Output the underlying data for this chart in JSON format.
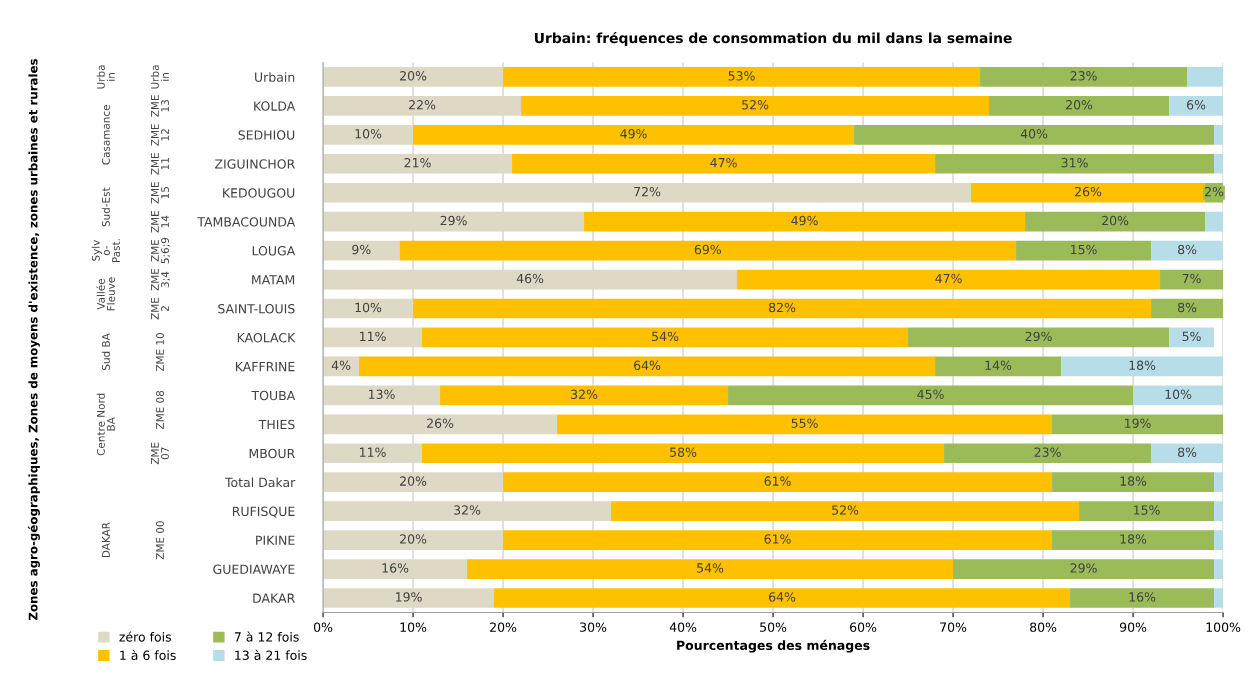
{
  "chart_data": {
    "type": "bar",
    "orientation": "horizontal",
    "stacked": true,
    "title": "Urbain: fréquences de consommation du mil dans la semaine",
    "xlabel": "Pourcentages des ménages",
    "categories": [
      "Urbain",
      "KOLDA",
      "SEDHIOU",
      "ZIGUINCHOR",
      "KEDOUGOU",
      "TAMBACOUNDA",
      "LOUGA",
      "MATAM",
      "SAINT-LOUIS",
      "KAOLACK",
      "KAFFRINE",
      "TOUBA",
      "THIES",
      "MBOUR",
      "Total Dakar",
      "RUFISQUE",
      "PIKINE",
      "GUEDIAWAYE",
      "DAKAR"
    ],
    "series": [
      {
        "name": "zéro fois",
        "color": "#ddd9c4",
        "values": [
          20,
          22,
          10,
          21,
          72,
          29,
          8.5,
          46,
          10,
          11,
          4,
          13,
          26,
          11,
          20,
          32,
          20,
          16,
          19
        ],
        "value_labels": [
          "20%",
          "22%",
          "10%",
          "21%",
          "72%",
          "29%",
          "9%",
          "46%",
          "10%",
          "11%",
          "4%",
          "13%",
          "26%",
          "11%",
          "20%",
          "32%",
          "20%",
          "16%",
          "19%"
        ]
      },
      {
        "name": "1 à 6 fois",
        "color": "#ffc000",
        "values": [
          53,
          52,
          49,
          47,
          26,
          49,
          68.5,
          47,
          82,
          54,
          64,
          32,
          55,
          58,
          61,
          52,
          61,
          54,
          64
        ],
        "value_labels": [
          "53%",
          "52%",
          "49%",
          "47%",
          "26%",
          "49%",
          "69%",
          "47%",
          "82%",
          "54%",
          "64%",
          "32%",
          "55%",
          "58%",
          "61%",
          "52%",
          "61%",
          "54%",
          "64%"
        ]
      },
      {
        "name": "7 à 12 fois",
        "color": "#9bbb59",
        "values": [
          23,
          20,
          40,
          31,
          2,
          20,
          15,
          7,
          8,
          29,
          14,
          45,
          19,
          23,
          18,
          15,
          18,
          29,
          16
        ],
        "value_labels": [
          "23%",
          "20%",
          "40%",
          "31%",
          "2%",
          "20%",
          "15%",
          "7%",
          "8%",
          "29%",
          "14%",
          "45%",
          "19%",
          "23%",
          "18%",
          "15%",
          "18%",
          "29%",
          "16%"
        ]
      },
      {
        "name": "13 à 21 fois",
        "color": "#b7dde8",
        "values": [
          4,
          6,
          1,
          1,
          0,
          2,
          8,
          0,
          0,
          5,
          18,
          10,
          0,
          8,
          1,
          1,
          1,
          1,
          1
        ],
        "value_labels": [
          null,
          "6%",
          null,
          null,
          null,
          null,
          "8%",
          null,
          null,
          "5%",
          "18%",
          "10%",
          null,
          "8%",
          null,
          null,
          null,
          null,
          null
        ]
      }
    ],
    "xlim": [
      0,
      100
    ],
    "xticks": [
      {
        "value": 0,
        "label": "0%"
      },
      {
        "value": 10,
        "label": "10%"
      },
      {
        "value": 20,
        "label": "20%"
      },
      {
        "value": 30,
        "label": "30%"
      },
      {
        "value": 40,
        "label": "40%"
      },
      {
        "value": 50,
        "label": "50%"
      },
      {
        "value": 60,
        "label": "60%"
      },
      {
        "value": 70,
        "label": "70%"
      },
      {
        "value": 80,
        "label": "80%"
      },
      {
        "value": 90,
        "label": "90%"
      },
      {
        "value": 100,
        "label": "100%"
      }
    ],
    "grid": "x",
    "legend": "bottom left",
    "annotations": [
      "Urba\nin",
      "Casamance",
      "Sud-Est",
      "Sylv\no-\nPast.",
      "Vallée\nFleuve",
      "Sud BA",
      "Centre Nord\nBA",
      "DAKAR",
      "Urba\nin",
      "ZME\n13",
      "ZME\n12",
      "ZME\n11",
      "ZME\n15",
      "ZME\n14",
      "ZME\n5;6;9",
      "ZME\n3;4",
      "ZME\n2",
      "ZME 10",
      "ZME 08",
      "ZME\n07",
      "ZME 00",
      "Zones agro-géographiques, Zones de moyens d'existence, zones urbaines et rurales"
    ]
  }
}
